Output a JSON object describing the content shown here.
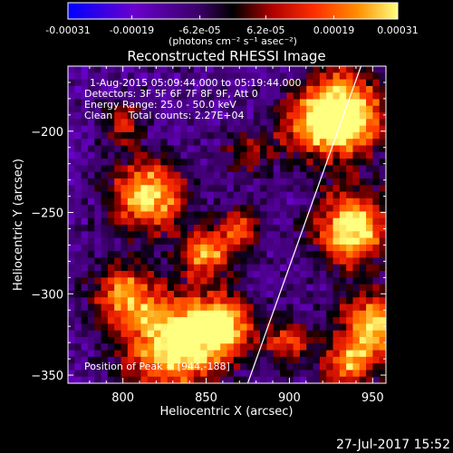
{
  "chart_data": {
    "type": "heatmap",
    "title": "Reconstructed RHESSI Image",
    "xlabel": "Heliocentric X (arcsec)",
    "ylabel": "Heliocentric Y (arcsec)",
    "xlim": [
      767,
      958
    ],
    "ylim": [
      -355,
      -160
    ],
    "x_ticks": [
      800,
      850,
      900,
      950
    ],
    "x_tick_labels": [
      "800",
      "850",
      "900",
      "950"
    ],
    "y_ticks": [
      -200,
      -250,
      -300,
      -350
    ],
    "y_tick_labels": [
      "−200",
      "−250",
      "−300",
      "−350"
    ],
    "colorbar": {
      "min": -0.00031,
      "max": 0.00031,
      "tick_labels": [
        "-0.00031",
        "-0.00019",
        "-6.2e-05",
        "6.2e-05",
        "0.00019",
        "0.00031"
      ],
      "unit_label": "(photons cm⁻² s⁻¹ asec⁻²)",
      "colors": [
        "#0000ff",
        "#6a00cc",
        "#3a0066",
        "#000000",
        "#b00000",
        "#ff3000",
        "#ff9000",
        "#ffff80"
      ]
    },
    "annotations": {
      "time_range": "1-Aug-2015 05:09:44.000 to 05:19:44.000",
      "detectors": "Detectors: 3F 5F 6F 7F 8F 9F, Att 0",
      "energy": "Energy Range: 25.0 - 50.0 keV",
      "clean": "Clean     Total counts: 2.27E+04",
      "peak": "Position of Peak = [944,-188]"
    },
    "limb_line": {
      "x": [
        875,
        943
      ],
      "y": [
        -355,
        -160
      ]
    }
  },
  "footer": {
    "timestamp": "27-Jul-2017 15:52"
  }
}
